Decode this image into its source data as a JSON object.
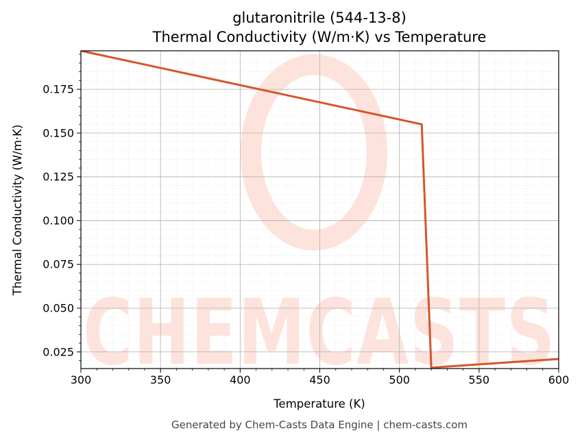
{
  "chart_data": {
    "type": "line",
    "title": "glutaronitrile (544-13-8)",
    "subtitle": "Thermal Conductivity (W/m·K) vs Temperature",
    "xlabel": "Temperature (K)",
    "ylabel": "Thermal Conductivity (W/m·K)",
    "xlim": [
      300,
      600
    ],
    "ylim": [
      0.0155,
      0.197
    ],
    "xticks": [
      300,
      350,
      400,
      450,
      500,
      550,
      600
    ],
    "yticks": [
      0.025,
      0.05,
      0.075,
      0.1,
      0.125,
      0.15,
      0.175
    ],
    "xtick_labels": [
      "300",
      "350",
      "400",
      "450",
      "500",
      "550",
      "600"
    ],
    "ytick_labels": [
      "0.025",
      "0.050",
      "0.075",
      "0.100",
      "0.125",
      "0.150",
      "0.175"
    ],
    "grid": true,
    "series": [
      {
        "color": "#d4562a",
        "x": [
          300,
          514,
          520,
          600
        ],
        "y": [
          0.197,
          0.155,
          0.016,
          0.021
        ]
      }
    ]
  },
  "watermark": {
    "text": "CHEMCASTS",
    "color": "#fde3dc"
  },
  "footer": "Generated by Chem-Casts Data Engine | chem-casts.com"
}
